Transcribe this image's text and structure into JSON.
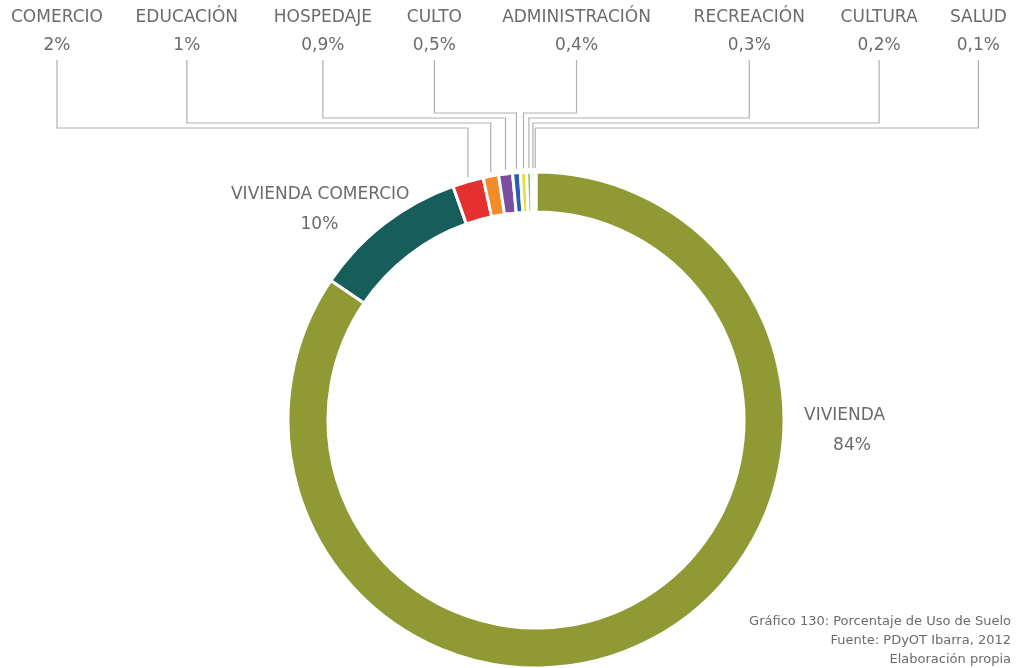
{
  "chart_data": {
    "type": "donut",
    "categories": [
      "VIVIENDA",
      "VIVIENDA COMERCIO",
      "COMERCIO",
      "EDUCACIÓN",
      "HOSPEDAJE",
      "CULTO",
      "ADMINISTRACIÓN",
      "RECREACIÓN",
      "CULTURA",
      "SALUD"
    ],
    "values": [
      84,
      10,
      2,
      1,
      0.9,
      0.5,
      0.4,
      0.3,
      0.2,
      0.1
    ],
    "value_labels": [
      "84%",
      "10%",
      "2%",
      "1%",
      "0,9%",
      "0,5%",
      "0,4%",
      "0,3%",
      "0,2%",
      "0,1%"
    ],
    "colors": [
      "#8f9a35",
      "#175e5a",
      "#e53030",
      "#f28c28",
      "#7b4fa0",
      "#2a5db0",
      "#e8e040",
      "#8cc63f",
      "#4a2020",
      "#5bc8e0"
    ],
    "annotations": [
      "Gráfico 130: Porcentaje de Uso de Suelo",
      "Fuente: PDyOT Ibarra, 2012",
      "Elaboración propia"
    ]
  }
}
